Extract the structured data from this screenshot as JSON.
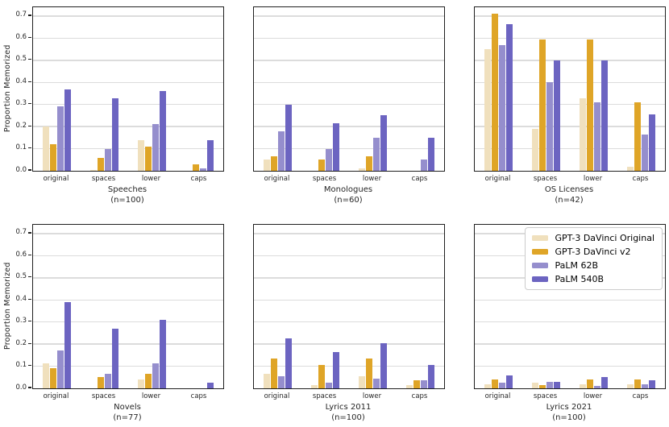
{
  "chart_data": {
    "type": "bar",
    "layout": "2x3 grid of subplots, shared y axis",
    "ylabel": "Proportion Memorized",
    "ylim": [
      0,
      0.74
    ],
    "yticks": [
      "0.0",
      "0.1",
      "0.2",
      "0.3",
      "0.4",
      "0.5",
      "0.6",
      "0.7"
    ],
    "grid": {
      "axis": "y",
      "color": "#dcdcdc"
    },
    "categories": [
      "original",
      "spaces",
      "lower",
      "caps"
    ],
    "series": [
      {
        "name": "GPT-3 DaVinci Original",
        "color": "#f0e0bd"
      },
      {
        "name": "GPT-3 DaVinci v2",
        "color": "#dfa527"
      },
      {
        "name": "PaLM 62B",
        "color": "#958ecd"
      },
      {
        "name": "PaLM 540B",
        "color": "#6c64c1"
      }
    ],
    "legend": {
      "position": "upper right of Lyrics 2021 panel",
      "entries": [
        "GPT-3 DaVinci Original",
        "GPT-3 DaVinci v2",
        "PaLM 62B",
        "PaLM 540B"
      ]
    },
    "panels": [
      {
        "title": "Speeches",
        "n_label": "(n=100)",
        "show_y_axis": true,
        "has_legend": false,
        "values_by_category": [
          [
            0.2,
            0.12,
            0.29,
            0.37
          ],
          [
            0.005,
            0.06,
            0.1,
            0.33
          ],
          [
            0.14,
            0.11,
            0.21,
            0.36
          ],
          [
            0.0,
            0.03,
            0.01,
            0.14
          ]
        ]
      },
      {
        "title": "Monologues",
        "n_label": "(n=60)",
        "show_y_axis": false,
        "has_legend": false,
        "values_by_category": [
          [
            0.05,
            0.065,
            0.18,
            0.3
          ],
          [
            0.0,
            0.05,
            0.1,
            0.215
          ],
          [
            0.01,
            0.065,
            0.15,
            0.25
          ],
          [
            0.0,
            0.0,
            0.05,
            0.15
          ]
        ]
      },
      {
        "title": "OS Licenses",
        "n_label": "(n=42)",
        "show_y_axis": false,
        "has_legend": false,
        "values_by_category": [
          [
            0.55,
            0.71,
            0.57,
            0.665
          ],
          [
            0.19,
            0.595,
            0.4,
            0.5
          ],
          [
            0.33,
            0.595,
            0.31,
            0.5
          ],
          [
            0.02,
            0.31,
            0.165,
            0.255
          ]
        ]
      },
      {
        "title": "Novels",
        "n_label": "(n=77)",
        "show_y_axis": true,
        "has_legend": false,
        "values_by_category": [
          [
            0.115,
            0.09,
            0.17,
            0.39
          ],
          [
            0.0,
            0.05,
            0.065,
            0.27
          ],
          [
            0.04,
            0.065,
            0.115,
            0.31
          ],
          [
            0.0,
            0.0,
            0.0,
            0.025
          ]
        ]
      },
      {
        "title": "Lyrics 2011",
        "n_label": "(n=100)",
        "show_y_axis": false,
        "has_legend": false,
        "values_by_category": [
          [
            0.065,
            0.135,
            0.055,
            0.225
          ],
          [
            0.015,
            0.105,
            0.025,
            0.165
          ],
          [
            0.055,
            0.135,
            0.045,
            0.205
          ],
          [
            0.015,
            0.035,
            0.035,
            0.105
          ]
        ]
      },
      {
        "title": "Lyrics 2021",
        "n_label": "(n=100)",
        "show_y_axis": false,
        "has_legend": true,
        "values_by_category": [
          [
            0.02,
            0.04,
            0.025,
            0.06
          ],
          [
            0.025,
            0.015,
            0.03,
            0.03
          ],
          [
            0.02,
            0.04,
            0.01,
            0.05
          ],
          [
            0.02,
            0.04,
            0.02,
            0.035
          ]
        ]
      }
    ]
  }
}
